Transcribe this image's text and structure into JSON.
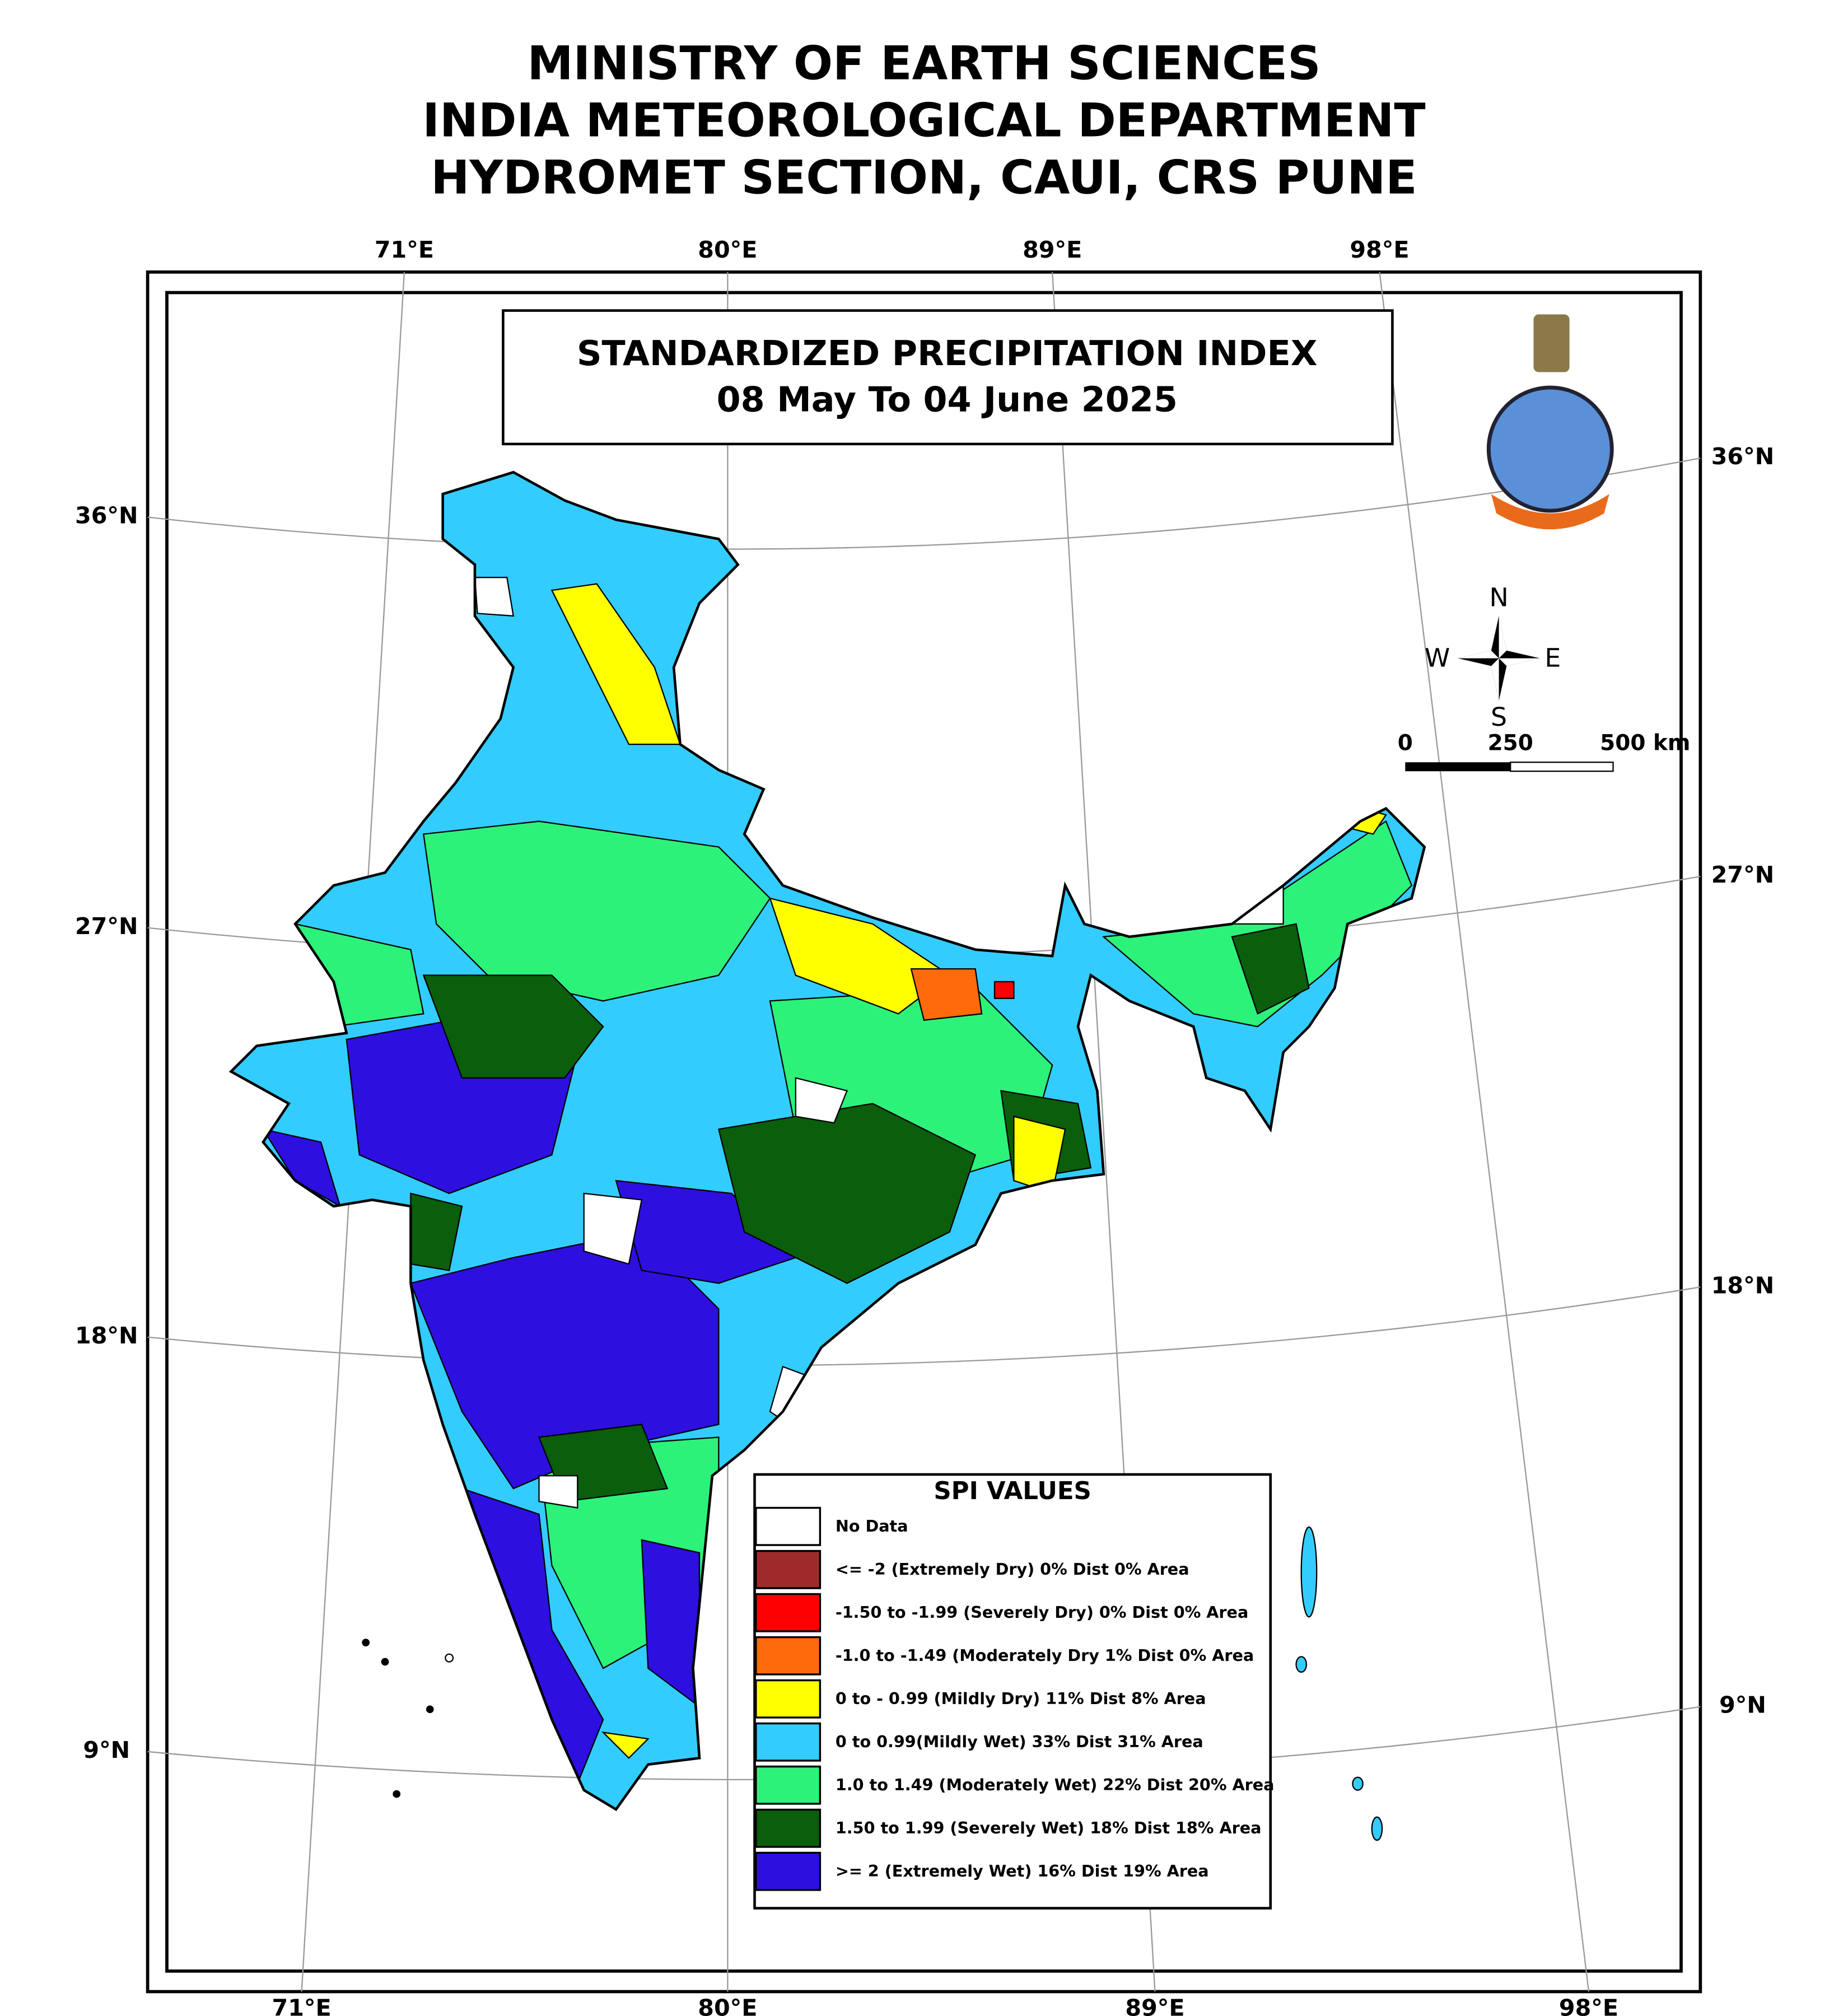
{
  "header": {
    "lines": [
      "MINISTRY OF EARTH SCIENCES",
      "INDIA METEOROLOGICAL DEPARTMENT",
      "HYDROMET SECTION, CAUI, CRS PUNE"
    ]
  },
  "map": {
    "title": "STANDARDIZED PRECIPITATION INDEX",
    "period": "08 May To 04 June 2025",
    "top_labels": [
      "71°E",
      "80°E",
      "89°E",
      "98°E"
    ],
    "bottom_labels": [
      "71°E",
      "80°E",
      "89°E",
      "98°E"
    ],
    "left_labels": [
      "36°N",
      "27°N",
      "18°N",
      "9°N"
    ],
    "right_labels": [
      "36°N",
      "27°N",
      "18°N",
      "9°N"
    ],
    "compass": {
      "north": "N",
      "south": "S",
      "west": "W",
      "east": "E"
    },
    "scale_labels": [
      "0",
      "250",
      "500 km"
    ]
  },
  "legend": {
    "title": "SPI VALUES",
    "items": [
      {
        "label": "No Data",
        "color": "#ffffff"
      },
      {
        "label": "<= -2 (Extremely Dry)   0% Dist   0% Area",
        "color": "#9e2b2b"
      },
      {
        "label": "-1.50 to -1.99 (Severely Dry)  0% Dist   0% Area",
        "color": "#ff0000"
      },
      {
        "label": "-1.0 to -1.49 (Moderately Dry  1% Dist   0% Area",
        "color": "#ff6a0a"
      },
      {
        "label": "0 to - 0.99 (Mildly Dry) 11% Dist   8% Area",
        "color": "#ffff00"
      },
      {
        "label": "0 to  0.99(Mildly Wet)  33% Dist  31% Area",
        "color": "#33ccff"
      },
      {
        "label": "1.0 to 1.49 (Moderately Wet)  22% Dist  20% Area",
        "color": "#2cf27a"
      },
      {
        "label": "1.50 to 1.99 (Severely Wet)  18% Dist  18% Area",
        "color": "#0b5e0b"
      },
      {
        "label": ">= 2 (Extremely Wet)   16% Dist   19% Area",
        "color": "#2d0fe0"
      }
    ]
  }
}
